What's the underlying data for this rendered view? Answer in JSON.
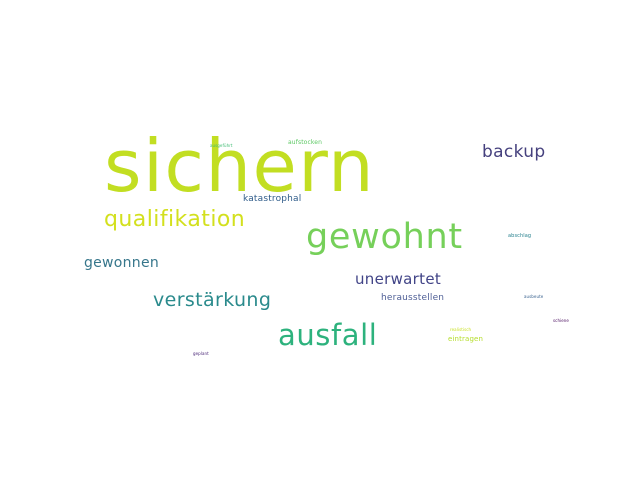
{
  "words": [
    {
      "text": "sichern",
      "color": "#c2de22"
    },
    {
      "text": "gewohnt",
      "color": "#76d05a"
    },
    {
      "text": "qualifikation",
      "color": "#d3e01e"
    },
    {
      "text": "ausfall",
      "color": "#2db27d"
    },
    {
      "text": "backup",
      "color": "#46417e"
    },
    {
      "text": "verstärkung",
      "color": "#2a8a8c"
    },
    {
      "text": "gewonnen",
      "color": "#36768b"
    },
    {
      "text": "unerwartet",
      "color": "#414487"
    },
    {
      "text": "katastrophal",
      "color": "#2f5c8a"
    },
    {
      "text": "herausstellen",
      "color": "#4f5f96"
    },
    {
      "text": "eintragen",
      "color": "#b5dd2b"
    },
    {
      "text": "aufstocken",
      "color": "#5cc863"
    },
    {
      "text": "ausgeführt",
      "color": "#3fbc73"
    },
    {
      "text": "abschlag",
      "color": "#26818e"
    },
    {
      "text": "ausbeute",
      "color": "#355f8d"
    },
    {
      "text": "realistisch",
      "color": "#c8e020"
    },
    {
      "text": "schiene",
      "color": "#46085c"
    },
    {
      "text": "geplant",
      "color": "#482475"
    }
  ]
}
